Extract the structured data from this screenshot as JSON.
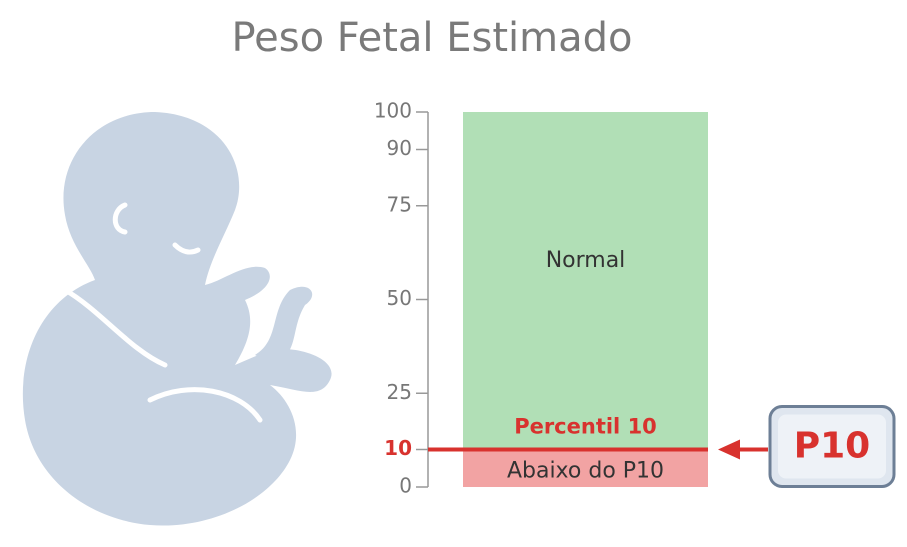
{
  "chart_data": {
    "type": "percentile-band",
    "title": "Peso Fetal Estimado",
    "ylim": [
      0,
      100
    ],
    "yticks": [
      0,
      10,
      25,
      50,
      75,
      90,
      100
    ],
    "zones": [
      {
        "name": "Abaixo do P10",
        "from": 0,
        "to": 10,
        "color": "#f2a3a3"
      },
      {
        "name": "Normal",
        "from": 10,
        "to": 100,
        "color": "#b1dfb6"
      }
    ],
    "threshold": {
      "value": 10,
      "label": "Percentil 10",
      "badge": "P10",
      "color": "#d8322e"
    }
  }
}
